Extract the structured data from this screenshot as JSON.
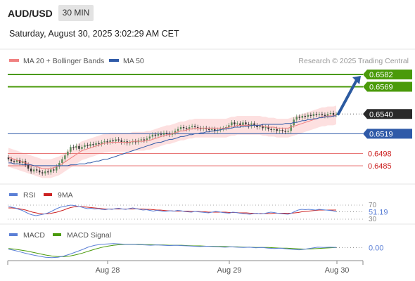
{
  "header": {
    "pair": "AUD/USD",
    "timeframe": "30 MIN",
    "datetime": "Saturday, August 30, 2025 3:02:29 AM CET"
  },
  "colors": {
    "resistance": "#4a9a0a",
    "support": "#e87878",
    "current": "#2a2a2a",
    "ma50": "#2f5aa8",
    "ma20": "#f08080",
    "band_fill": "#fde0e0",
    "bull_candle": "#5a8a5a",
    "bear_candle": "#333333",
    "rsi": "#5b7fd6",
    "rsi_ma": "#cc2222",
    "macd": "#5b7fd6",
    "macd_signal": "#4a9a0a",
    "arrow": "#2b5aa0"
  },
  "chart_data": [
    {
      "type": "candlestick",
      "legend": [
        {
          "name": "MA 20 + Bollinger Bands",
          "color": "#f08080"
        },
        {
          "name": "MA 50",
          "color": "#2f5aa8"
        }
      ],
      "watermark": "Research © 2025 Trading Central",
      "ylim": [
        0.6476,
        0.6588
      ],
      "levels": [
        {
          "value": 0.6582,
          "label": "0.6582",
          "kind": "resistance"
        },
        {
          "value": 0.6569,
          "label": "0.6569",
          "kind": "resistance"
        },
        {
          "value": 0.654,
          "label": "0.6540",
          "kind": "current"
        },
        {
          "value": 0.6519,
          "label": "0.6519",
          "kind": "pivot"
        },
        {
          "value": 0.6498,
          "label": "0.6498",
          "kind": "support"
        },
        {
          "value": 0.6485,
          "label": "0.6485",
          "kind": "support"
        }
      ],
      "close": [
        0.6492,
        0.649,
        0.6489,
        0.6491,
        0.6488,
        0.649,
        0.6486,
        0.6482,
        0.6479,
        0.6481,
        0.648,
        0.6478,
        0.6477,
        0.6479,
        0.6478,
        0.6481,
        0.648,
        0.6484,
        0.6488,
        0.6492,
        0.6496,
        0.65,
        0.6505,
        0.6504,
        0.6506,
        0.6503,
        0.6505,
        0.6507,
        0.6506,
        0.6508,
        0.6507,
        0.6509,
        0.6508,
        0.651,
        0.6511,
        0.651,
        0.6512,
        0.6511,
        0.6513,
        0.6512,
        0.651,
        0.6511,
        0.6509,
        0.651,
        0.6511,
        0.651,
        0.6512,
        0.6513,
        0.6512,
        0.6514,
        0.6516,
        0.6518,
        0.6517,
        0.6519,
        0.6518,
        0.652,
        0.6519,
        0.6518,
        0.652,
        0.6522,
        0.6524,
        0.6526,
        0.6525,
        0.6524,
        0.6526,
        0.6527,
        0.6526,
        0.6525,
        0.6524,
        0.6525,
        0.6524,
        0.6523,
        0.6524,
        0.6522,
        0.6523,
        0.6524,
        0.6525,
        0.6526,
        0.6528,
        0.6531,
        0.6529,
        0.653,
        0.6528,
        0.6531,
        0.6529,
        0.6527,
        0.653,
        0.6528,
        0.6526,
        0.6527,
        0.6525,
        0.6526,
        0.6524,
        0.6523,
        0.6524,
        0.6522,
        0.6523,
        0.6522,
        0.6521,
        0.6522,
        0.6528,
        0.6534,
        0.6537,
        0.6536,
        0.6538,
        0.6537,
        0.6539,
        0.6538,
        0.654,
        0.6539,
        0.654,
        0.6539,
        0.6538,
        0.654,
        0.6541,
        0.6539,
        0.654
      ],
      "ma20": [
        0.6494,
        0.6493,
        0.6492,
        0.6491,
        0.649,
        0.6489,
        0.6488,
        0.6487,
        0.6486,
        0.6485,
        0.6484,
        0.6483,
        0.6482,
        0.6482,
        0.6482,
        0.6482,
        0.6483,
        0.6484,
        0.6485,
        0.6487,
        0.6489,
        0.6491,
        0.6493,
        0.6495,
        0.6497,
        0.6499,
        0.6501,
        0.6502,
        0.6503,
        0.6504,
        0.6505,
        0.6506,
        0.6507,
        0.6508,
        0.6509,
        0.6509,
        0.651,
        0.651,
        0.651,
        0.651,
        0.651,
        0.651,
        0.651,
        0.651,
        0.6511,
        0.6511,
        0.6511,
        0.6511,
        0.6511,
        0.6512,
        0.6512,
        0.6513,
        0.6514,
        0.6515,
        0.6516,
        0.6517,
        0.6518,
        0.6518,
        0.6519,
        0.652,
        0.6521,
        0.6522,
        0.6522,
        0.6523,
        0.6524,
        0.6524,
        0.6525,
        0.6525,
        0.6525,
        0.6525,
        0.6525,
        0.6525,
        0.6525,
        0.6525,
        0.6525,
        0.6525,
        0.6525,
        0.6525,
        0.6526,
        0.6527,
        0.6527,
        0.6528,
        0.6528,
        0.6528,
        0.6528,
        0.6528,
        0.6528,
        0.6528,
        0.6528,
        0.6528,
        0.6527,
        0.6527,
        0.6526,
        0.6526,
        0.6526,
        0.6525,
        0.6525,
        0.6525,
        0.6525,
        0.6525,
        0.6526,
        0.6527,
        0.6528,
        0.6529,
        0.653,
        0.6531,
        0.6532,
        0.6533,
        0.6534,
        0.6535,
        0.6536,
        0.6537,
        0.6537,
        0.6538,
        0.6538,
        0.6538,
        0.6539
      ],
      "ma50": [
        0.6488,
        0.6488,
        0.6487,
        0.6487,
        0.6487,
        0.6486,
        0.6486,
        0.6486,
        0.6486,
        0.6485,
        0.6485,
        0.6485,
        0.6485,
        0.6485,
        0.6485,
        0.6485,
        0.6485,
        0.6485,
        0.6485,
        0.6485,
        0.6485,
        0.6485,
        0.6486,
        0.6486,
        0.6486,
        0.6487,
        0.6487,
        0.6487,
        0.6488,
        0.6488,
        0.6489,
        0.649,
        0.649,
        0.6491,
        0.6492,
        0.6492,
        0.6493,
        0.6494,
        0.6495,
        0.6496,
        0.6497,
        0.6498,
        0.6499,
        0.65,
        0.6501,
        0.6502,
        0.6503,
        0.6504,
        0.6505,
        0.6506,
        0.6507,
        0.6508,
        0.6509,
        0.651,
        0.651,
        0.6511,
        0.6512,
        0.6513,
        0.6513,
        0.6514,
        0.6515,
        0.6516,
        0.6516,
        0.6517,
        0.6518,
        0.6518,
        0.6519,
        0.6519,
        0.652,
        0.652,
        0.6521,
        0.6521,
        0.6522,
        0.6522,
        0.6523,
        0.6523,
        0.6524,
        0.6524,
        0.6525,
        0.6525,
        0.6526,
        0.6526,
        0.6526,
        0.6527,
        0.6527,
        0.6527,
        0.6528,
        0.6528,
        0.6528,
        0.6528,
        0.6529,
        0.6529,
        0.6529,
        0.6529,
        0.6529,
        0.6529,
        0.6529,
        0.6529,
        0.653,
        0.653,
        0.653,
        0.6531,
        0.6531,
        0.6532,
        0.6533,
        0.6533,
        0.6534,
        0.6534,
        0.6535,
        0.6535,
        0.6536,
        0.6536,
        0.6537,
        0.6537,
        0.6537,
        0.6538,
        0.6538
      ],
      "band_width": 0.001,
      "forecast_target": 0.6582
    },
    {
      "type": "line",
      "legend": [
        {
          "name": "RSI",
          "color": "#5b7fd6"
        },
        {
          "name": "9MA",
          "color": "#cc2222"
        }
      ],
      "ylim": [
        28,
        74
      ],
      "levels": [
        {
          "value": 70,
          "label": "70"
        },
        {
          "value": 30,
          "label": "30"
        }
      ],
      "current_label": "51.19",
      "rsi": [
        66,
        64,
        62,
        58,
        55,
        50,
        45,
        42,
        40,
        42,
        44,
        46,
        50,
        55,
        60,
        64,
        66,
        68,
        70,
        69,
        67,
        65,
        62,
        60,
        61,
        59,
        60,
        58,
        57,
        59,
        58,
        60,
        61,
        59,
        58,
        60,
        62,
        60,
        58,
        56,
        57,
        55,
        53,
        55,
        54,
        52,
        53,
        54,
        53,
        55,
        54,
        52,
        51,
        50,
        52,
        51,
        50,
        49,
        48,
        50,
        52,
        51,
        49,
        48,
        47,
        50,
        49,
        47,
        46,
        45,
        44,
        46,
        47,
        45,
        46,
        48,
        50,
        49,
        47,
        46,
        45,
        44,
        47,
        52,
        56,
        58,
        57,
        58,
        57,
        56,
        58,
        57,
        56,
        55,
        54,
        51
      ],
      "ma9": [
        62,
        62,
        61,
        60,
        58,
        56,
        53,
        50,
        48,
        46,
        45,
        45,
        46,
        48,
        50,
        53,
        56,
        60,
        63,
        65,
        66,
        66,
        65,
        64,
        63,
        62,
        61,
        60,
        59,
        59,
        59,
        59,
        59,
        59,
        59,
        59,
        59,
        60,
        59,
        59,
        58,
        58,
        57,
        56,
        56,
        55,
        54,
        54,
        53,
        53,
        53,
        53,
        53,
        52,
        52,
        52,
        51,
        51,
        50,
        50,
        50,
        50,
        50,
        50,
        49,
        49,
        49,
        48,
        48,
        48,
        47,
        47,
        46,
        46,
        46,
        46,
        46,
        47,
        47,
        47,
        47,
        47,
        47,
        48,
        49,
        51,
        52,
        53,
        54,
        55,
        56,
        56,
        56,
        56,
        56,
        56
      ]
    },
    {
      "type": "line",
      "legend": [
        {
          "name": "MACD",
          "color": "#5b7fd6"
        },
        {
          "name": "MACD Signal",
          "color": "#4a9a0a"
        }
      ],
      "ylim": [
        -3.6,
        1.8
      ],
      "current_label": "0.00",
      "x_tick_labels": [
        "Aug 28",
        "Aug 29",
        "Aug 30"
      ],
      "macd": [
        -0.5,
        -0.9,
        -1.4,
        -1.9,
        -2.3,
        -2.7,
        -3.0,
        -3.1,
        -3.0,
        -2.6,
        -2.0,
        -1.3,
        -0.6,
        0.2,
        0.7,
        1.0,
        1.1,
        1.2,
        1.1,
        1.0,
        1.0,
        0.9,
        0.8,
        0.7,
        0.8,
        0.7,
        0.6,
        0.7,
        0.6,
        0.5,
        0.4,
        0.3,
        0.4,
        0.3,
        0.2,
        0.1,
        0.2,
        0.1,
        0.0,
        0.1,
        -0.1,
        0.0,
        -0.2,
        -0.3,
        -0.2,
        -0.4,
        -0.6,
        -0.7,
        -0.5,
        -0.2,
        0.1,
        0.0,
        0.1,
        0.0
      ],
      "signal": [
        -0.3,
        -0.5,
        -0.8,
        -1.1,
        -1.5,
        -1.9,
        -2.3,
        -2.6,
        -2.8,
        -2.8,
        -2.6,
        -2.2,
        -1.7,
        -1.1,
        -0.5,
        0.0,
        0.4,
        0.7,
        0.9,
        1.0,
        1.0,
        1.0,
        0.9,
        0.9,
        0.8,
        0.8,
        0.7,
        0.7,
        0.7,
        0.6,
        0.5,
        0.5,
        0.4,
        0.4,
        0.3,
        0.3,
        0.2,
        0.2,
        0.1,
        0.1,
        0.0,
        0.0,
        0.0,
        -0.1,
        -0.2,
        -0.2,
        -0.3,
        -0.4,
        -0.5,
        -0.4,
        -0.3,
        -0.2,
        -0.1,
        0.0
      ]
    }
  ]
}
